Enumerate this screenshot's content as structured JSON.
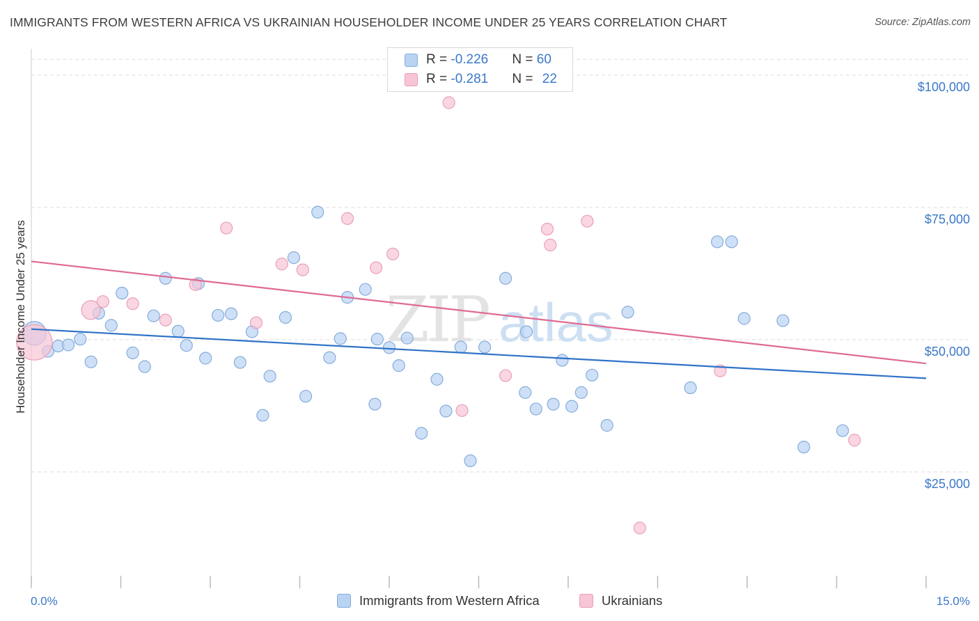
{
  "header": {
    "title": "IMMIGRANTS FROM WESTERN AFRICA VS UKRAINIAN HOUSEHOLDER INCOME UNDER 25 YEARS CORRELATION CHART",
    "source": "Source: ZipAtlas.com"
  },
  "watermark": {
    "zip": "ZIP",
    "atlas": "atlas"
  },
  "legend": {
    "rows": [
      {
        "r_label": "R = ",
        "r_value": "-0.226",
        "n_label": "N = ",
        "n_value": "60"
      },
      {
        "r_label": "R = ",
        "r_value": "-0.281",
        "n_label": "N = ",
        "n_value": "22"
      }
    ]
  },
  "colors": {
    "blue_fill": "#b9d3f3",
    "blue_stroke": "#86acd9",
    "blue_line": "#2f72c8",
    "pink_fill": "#f7c5d5",
    "pink_stroke": "#e9a0b8",
    "pink_line": "#e06a93",
    "tick_text": "#3a78c9",
    "grid": "#dddddd"
  },
  "chart_data": {
    "type": "scatter",
    "title": "IMMIGRANTS FROM WESTERN AFRICA VS UKRAINIAN HOUSEHOLDER INCOME UNDER 25 YEARS CORRELATION CHART",
    "xlabel": "",
    "ylabel": "Householder Income Under 25 years",
    "xlim": [
      0,
      15
    ],
    "ylim": [
      3000,
      105000
    ],
    "x_tick_labels": [
      "0.0%",
      "15.0%"
    ],
    "y_ticks": [
      25000,
      50000,
      75000,
      100000
    ],
    "y_tick_labels": [
      "$25,000",
      "$50,000",
      "$75,000",
      "$100,000"
    ],
    "grid": true,
    "legend_placement": "top-center",
    "series": [
      {
        "name": "Immigrants from Western Africa",
        "R": -0.226,
        "N": 60,
        "trend": {
          "x": [
            0,
            15
          ],
          "y": [
            52000,
            42700
          ]
        },
        "points": [
          {
            "x": 0.05,
            "y": 51200,
            "s": 2
          },
          {
            "x": 0.28,
            "y": 47800,
            "s": 1
          },
          {
            "x": 0.45,
            "y": 48800,
            "s": 1
          },
          {
            "x": 0.62,
            "y": 49000,
            "s": 1
          },
          {
            "x": 0.82,
            "y": 50100,
            "s": 1
          },
          {
            "x": 1.0,
            "y": 45800,
            "s": 1
          },
          {
            "x": 1.13,
            "y": 55000,
            "s": 1
          },
          {
            "x": 1.34,
            "y": 52700,
            "s": 1
          },
          {
            "x": 1.52,
            "y": 58800,
            "s": 1
          },
          {
            "x": 1.7,
            "y": 47500,
            "s": 1
          },
          {
            "x": 1.9,
            "y": 44900,
            "s": 1
          },
          {
            "x": 2.05,
            "y": 54500,
            "s": 1
          },
          {
            "x": 2.25,
            "y": 61600,
            "s": 1
          },
          {
            "x": 2.46,
            "y": 51600,
            "s": 1
          },
          {
            "x": 2.6,
            "y": 48900,
            "s": 1
          },
          {
            "x": 2.8,
            "y": 60600,
            "s": 1
          },
          {
            "x": 2.92,
            "y": 46500,
            "s": 1
          },
          {
            "x": 3.13,
            "y": 54600,
            "s": 1
          },
          {
            "x": 3.35,
            "y": 54900,
            "s": 1
          },
          {
            "x": 3.5,
            "y": 45700,
            "s": 1
          },
          {
            "x": 3.7,
            "y": 51500,
            "s": 1
          },
          {
            "x": 3.88,
            "y": 35700,
            "s": 1
          },
          {
            "x": 4.0,
            "y": 43100,
            "s": 1
          },
          {
            "x": 4.26,
            "y": 54200,
            "s": 1
          },
          {
            "x": 4.4,
            "y": 65500,
            "s": 1
          },
          {
            "x": 4.6,
            "y": 39300,
            "s": 1
          },
          {
            "x": 4.8,
            "y": 74100,
            "s": 1
          },
          {
            "x": 5.0,
            "y": 46600,
            "s": 1
          },
          {
            "x": 5.18,
            "y": 50200,
            "s": 1
          },
          {
            "x": 5.3,
            "y": 58000,
            "s": 1
          },
          {
            "x": 5.6,
            "y": 59500,
            "s": 1
          },
          {
            "x": 5.76,
            "y": 37800,
            "s": 1
          },
          {
            "x": 5.8,
            "y": 50100,
            "s": 1
          },
          {
            "x": 6.0,
            "y": 48500,
            "s": 1
          },
          {
            "x": 6.16,
            "y": 45100,
            "s": 1
          },
          {
            "x": 6.3,
            "y": 50300,
            "s": 1
          },
          {
            "x": 6.54,
            "y": 32300,
            "s": 1
          },
          {
            "x": 6.8,
            "y": 42500,
            "s": 1
          },
          {
            "x": 6.95,
            "y": 36500,
            "s": 1
          },
          {
            "x": 7.2,
            "y": 48600,
            "s": 1
          },
          {
            "x": 7.36,
            "y": 27100,
            "s": 1
          },
          {
            "x": 7.6,
            "y": 48600,
            "s": 1
          },
          {
            "x": 7.95,
            "y": 61600,
            "s": 1
          },
          {
            "x": 8.3,
            "y": 51500,
            "s": 1
          },
          {
            "x": 8.28,
            "y": 40000,
            "s": 1
          },
          {
            "x": 8.46,
            "y": 36900,
            "s": 1
          },
          {
            "x": 8.75,
            "y": 37800,
            "s": 1
          },
          {
            "x": 8.9,
            "y": 46100,
            "s": 1
          },
          {
            "x": 9.06,
            "y": 37400,
            "s": 1
          },
          {
            "x": 9.22,
            "y": 40000,
            "s": 1
          },
          {
            "x": 9.4,
            "y": 43300,
            "s": 1
          },
          {
            "x": 9.65,
            "y": 33800,
            "s": 1
          },
          {
            "x": 10.0,
            "y": 55200,
            "s": 1
          },
          {
            "x": 11.05,
            "y": 40900,
            "s": 1
          },
          {
            "x": 11.5,
            "y": 68500,
            "s": 1
          },
          {
            "x": 11.74,
            "y": 68500,
            "s": 1
          },
          {
            "x": 11.95,
            "y": 54000,
            "s": 1
          },
          {
            "x": 12.6,
            "y": 53600,
            "s": 1
          },
          {
            "x": 12.95,
            "y": 29700,
            "s": 1
          },
          {
            "x": 13.6,
            "y": 32800,
            "s": 1
          }
        ]
      },
      {
        "name": "Ukrainians",
        "R": -0.281,
        "N": 22,
        "trend": {
          "x": [
            0,
            15
          ],
          "y": [
            64800,
            45500
          ]
        },
        "points": [
          {
            "x": 0.05,
            "y": 49500,
            "s": 3
          },
          {
            "x": 1.0,
            "y": 55600,
            "s": 1.6
          },
          {
            "x": 1.2,
            "y": 57200,
            "s": 1
          },
          {
            "x": 1.7,
            "y": 56800,
            "s": 1
          },
          {
            "x": 2.25,
            "y": 53700,
            "s": 1
          },
          {
            "x": 2.75,
            "y": 60400,
            "s": 1
          },
          {
            "x": 3.27,
            "y": 71100,
            "s": 1
          },
          {
            "x": 3.77,
            "y": 53200,
            "s": 1
          },
          {
            "x": 4.2,
            "y": 64300,
            "s": 1
          },
          {
            "x": 4.55,
            "y": 63200,
            "s": 1
          },
          {
            "x": 5.3,
            "y": 72900,
            "s": 1
          },
          {
            "x": 5.78,
            "y": 63600,
            "s": 1
          },
          {
            "x": 6.06,
            "y": 66200,
            "s": 1
          },
          {
            "x": 7.0,
            "y": 94800,
            "s": 1
          },
          {
            "x": 7.22,
            "y": 36600,
            "s": 1
          },
          {
            "x": 7.95,
            "y": 43200,
            "s": 1
          },
          {
            "x": 8.65,
            "y": 70900,
            "s": 1
          },
          {
            "x": 8.7,
            "y": 67900,
            "s": 1
          },
          {
            "x": 9.32,
            "y": 72400,
            "s": 1
          },
          {
            "x": 10.2,
            "y": 14400,
            "s": 1
          },
          {
            "x": 11.55,
            "y": 44100,
            "s": 1
          },
          {
            "x": 13.8,
            "y": 31000,
            "s": 1
          }
        ]
      }
    ]
  }
}
